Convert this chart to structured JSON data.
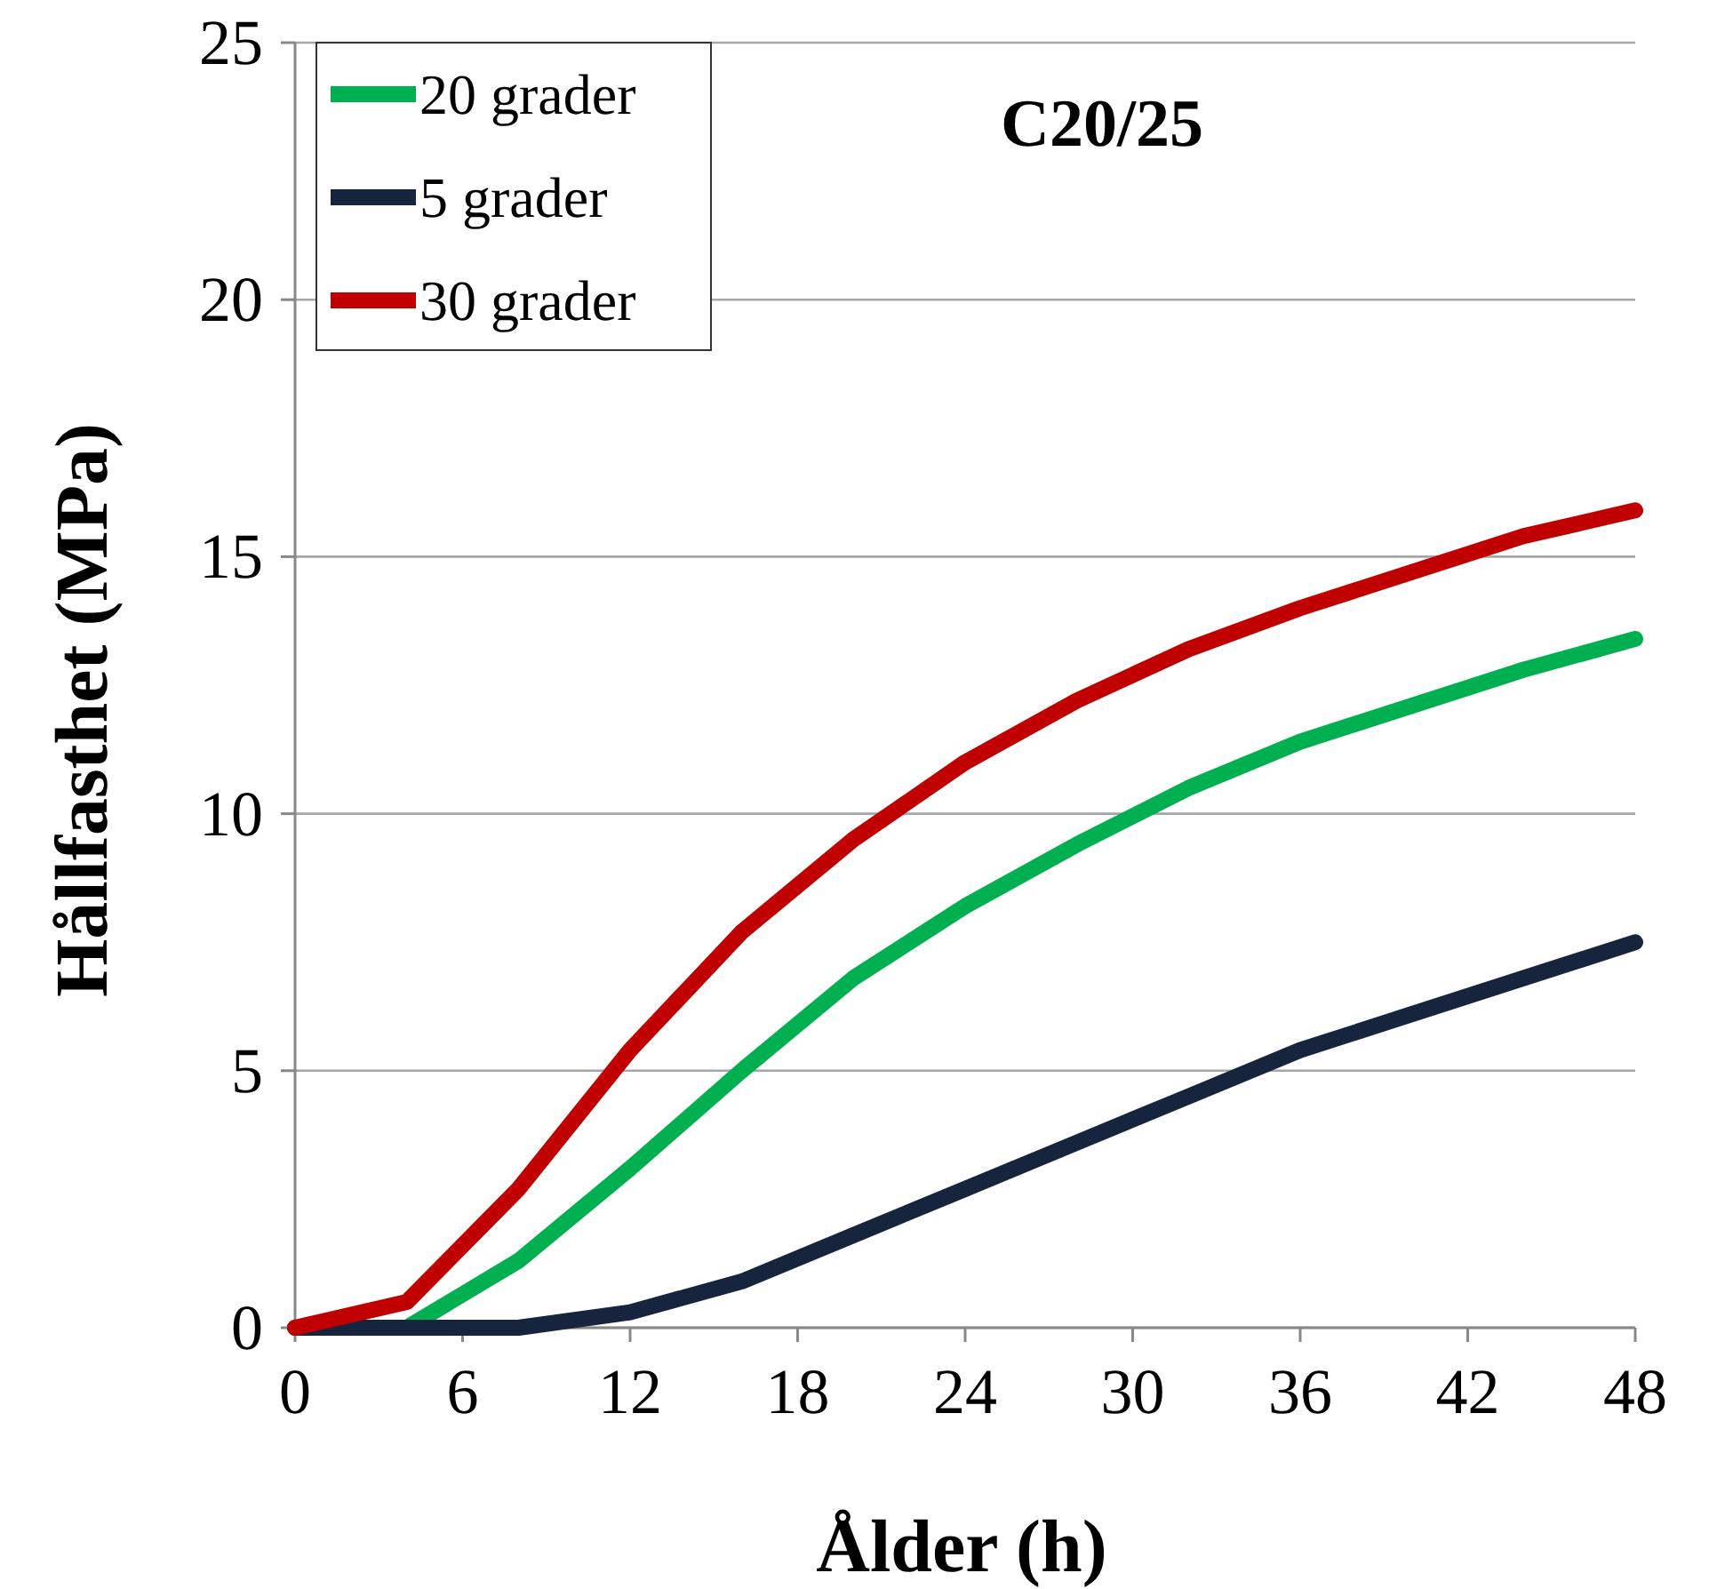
{
  "chart_data": {
    "type": "line",
    "title": "C20/25",
    "xlabel": "Ålder (h)",
    "ylabel": "Hållfasthet (MPa)",
    "x": [
      0,
      4,
      8,
      12,
      16,
      20,
      24,
      28,
      32,
      36,
      40,
      44,
      48
    ],
    "series": [
      {
        "name": "20 grader",
        "color": "#00b050",
        "values": [
          0,
          0,
          1.3,
          3.1,
          5.0,
          6.8,
          8.2,
          9.4,
          10.5,
          11.4,
          12.1,
          12.8,
          13.4
        ]
      },
      {
        "name": "5 grader",
        "color": "#17243d",
        "values": [
          0,
          0,
          0,
          0.3,
          0.9,
          1.8,
          2.7,
          3.6,
          4.5,
          5.4,
          6.1,
          6.8,
          7.5
        ]
      },
      {
        "name": "30 grader",
        "color": "#c00000",
        "values": [
          0,
          0.5,
          2.7,
          5.4,
          7.7,
          9.5,
          11.0,
          12.2,
          13.2,
          14.0,
          14.7,
          15.4,
          15.9
        ]
      }
    ],
    "xlim": [
      0,
      48
    ],
    "xticks": [
      0,
      6,
      12,
      18,
      24,
      30,
      36,
      42,
      48
    ],
    "ylim": [
      0,
      25
    ],
    "yticks": [
      0,
      5,
      10,
      15,
      20,
      25
    ],
    "grid": "y",
    "legend": "top left",
    "marker": "none",
    "line_style": "solid"
  }
}
